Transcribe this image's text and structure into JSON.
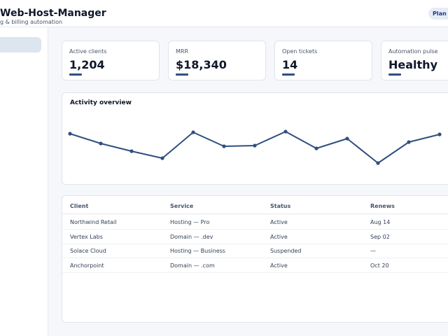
{
  "header": {
    "title": "Web-Host-Manager",
    "subtitle": "g & billing automation",
    "plan_badge": "Plan"
  },
  "metrics": [
    {
      "label": "Active clients",
      "value": "1,204"
    },
    {
      "label": "MRR",
      "value": "$18,340"
    },
    {
      "label": "Open tickets",
      "value": "14"
    },
    {
      "label": "Automation pulse",
      "value": "Healthy"
    }
  ],
  "chart": {
    "title": "Activity overview",
    "line_color": "#2f4f7f"
  },
  "chart_data": {
    "type": "line",
    "title": "Activity overview",
    "xlabel": "",
    "ylabel": "",
    "grid": false,
    "legend": "none",
    "ylim": [
      0,
      10
    ],
    "x": [
      1,
      2,
      3,
      4,
      5,
      6,
      7,
      8,
      9,
      10,
      11,
      12,
      13
    ],
    "series": [
      {
        "values": [
          7.0,
          5.6,
          4.5,
          3.5,
          7.2,
          5.2,
          5.3,
          7.3,
          4.9,
          6.3,
          2.8,
          5.8,
          6.9
        ]
      }
    ]
  },
  "table": {
    "columns": [
      "Client",
      "Service",
      "Status",
      "Renews"
    ],
    "rows": [
      [
        "Northwind Retail",
        "Hosting — Pro",
        "Active",
        "Aug 14"
      ],
      [
        "Vertex Labs",
        "Domain — .dev",
        "Active",
        "Sep 02"
      ],
      [
        "Solace Cloud",
        "Hosting — Business",
        "Suspended",
        "—"
      ],
      [
        "Anchorpoint",
        "Domain — .com",
        "Active",
        "Oct 20"
      ]
    ]
  }
}
